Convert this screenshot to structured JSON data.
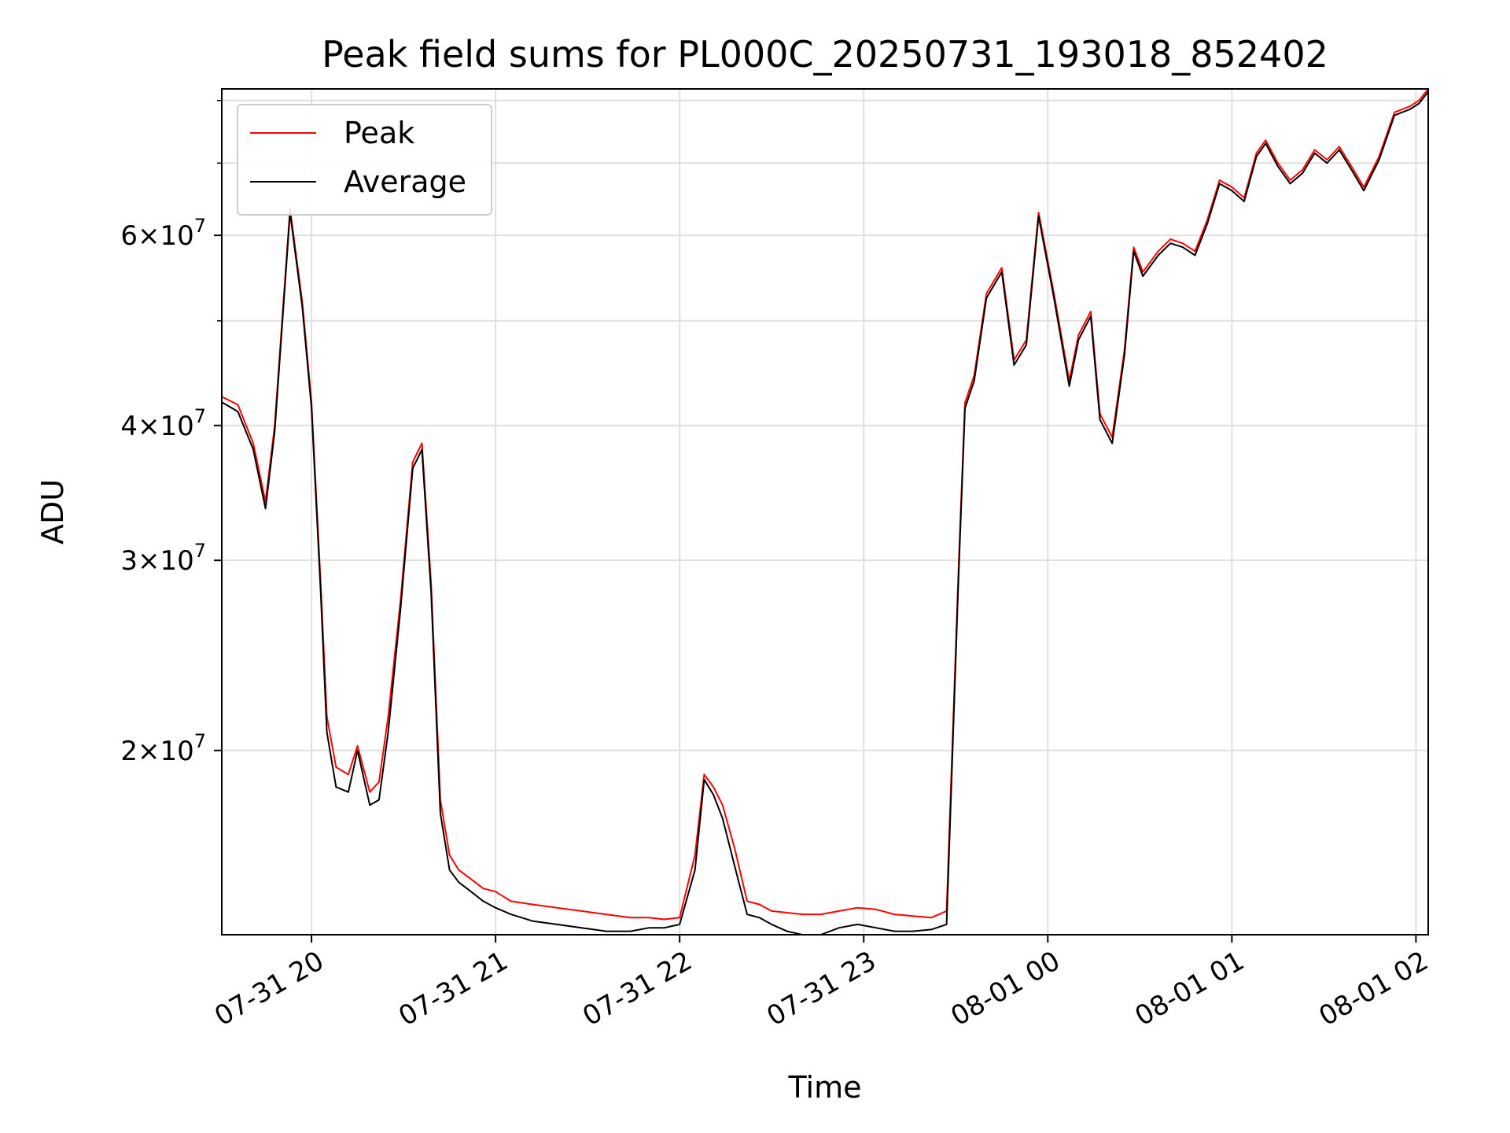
{
  "chart_data": {
    "type": "line",
    "title": "Peak field sums for PL000C_20250731_193018_852402",
    "xlabel": "Time",
    "ylabel": "ADU",
    "yscale": "log",
    "grid": true,
    "legend_position": "upper left",
    "xlim": [
      "2025-07-31 19:30:45",
      "2025-08-01 02:04:00"
    ],
    "ylim": [
      13500000,
      82000000
    ],
    "x_ticks": [
      {
        "label": "07-31 20",
        "value": "2025-07-31 20:00"
      },
      {
        "label": "07-31 21",
        "value": "2025-07-31 21:00"
      },
      {
        "label": "07-31 22",
        "value": "2025-07-31 22:00"
      },
      {
        "label": "07-31 23",
        "value": "2025-07-31 23:00"
      },
      {
        "label": "08-01 00",
        "value": "2025-08-01 00:00"
      },
      {
        "label": "08-01 01",
        "value": "2025-08-01 01:00"
      },
      {
        "label": "08-01 02",
        "value": "2025-08-01 02:00"
      }
    ],
    "y_ticks": [
      {
        "value": 20000000,
        "mantissa": "2",
        "exponent": "7"
      },
      {
        "value": 30000000,
        "mantissa": "3",
        "exponent": "7"
      },
      {
        "value": 40000000,
        "mantissa": "4",
        "exponent": "7"
      },
      {
        "value": 60000000,
        "mantissa": "6",
        "exponent": "7"
      }
    ],
    "y_minor_ticks": [
      50000000,
      70000000,
      80000000
    ],
    "series": [
      {
        "name": "Peak",
        "color": "#ff0000",
        "x": [
          "2025-07-31 19:31",
          "2025-07-31 19:36",
          "2025-07-31 19:41",
          "2025-07-31 19:45",
          "2025-07-31 19:48",
          "2025-07-31 19:53",
          "2025-07-31 19:57",
          "2025-07-31 20:00",
          "2025-07-31 20:03",
          "2025-07-31 20:05",
          "2025-07-31 20:08",
          "2025-07-31 20:12",
          "2025-07-31 20:15",
          "2025-07-31 20:19",
          "2025-07-31 20:22",
          "2025-07-31 20:25",
          "2025-07-31 20:29",
          "2025-07-31 20:33",
          "2025-07-31 20:36",
          "2025-07-31 20:39",
          "2025-07-31 20:42",
          "2025-07-31 20:45",
          "2025-07-31 20:48",
          "2025-07-31 20:52",
          "2025-07-31 20:56",
          "2025-07-31 21:00",
          "2025-07-31 21:05",
          "2025-07-31 21:12",
          "2025-07-31 21:20",
          "2025-07-31 21:28",
          "2025-07-31 21:36",
          "2025-07-31 21:44",
          "2025-07-31 21:50",
          "2025-07-31 21:55",
          "2025-07-31 22:00",
          "2025-07-31 22:05",
          "2025-07-31 22:08",
          "2025-07-31 22:11",
          "2025-07-31 22:14",
          "2025-07-31 22:18",
          "2025-07-31 22:22",
          "2025-07-31 22:26",
          "2025-07-31 22:30",
          "2025-07-31 22:35",
          "2025-07-31 22:40",
          "2025-07-31 22:46",
          "2025-07-31 22:52",
          "2025-07-31 22:58",
          "2025-07-31 23:04",
          "2025-07-31 23:10",
          "2025-07-31 23:16",
          "2025-07-31 23:22",
          "2025-07-31 23:27",
          "2025-07-31 23:31",
          "2025-07-31 23:33",
          "2025-07-31 23:36",
          "2025-07-31 23:40",
          "2025-07-31 23:45",
          "2025-07-31 23:49",
          "2025-07-31 23:53",
          "2025-07-31 23:57",
          "2025-08-01 00:02",
          "2025-08-01 00:07",
          "2025-08-01 00:10",
          "2025-08-01 00:14",
          "2025-08-01 00:17",
          "2025-08-01 00:21",
          "2025-08-01 00:25",
          "2025-08-01 00:28",
          "2025-08-01 00:31",
          "2025-08-01 00:36",
          "2025-08-01 00:40",
          "2025-08-01 00:44",
          "2025-08-01 00:48",
          "2025-08-01 00:52",
          "2025-08-01 00:56",
          "2025-08-01 01:00",
          "2025-08-01 01:04",
          "2025-08-01 01:08",
          "2025-08-01 01:11",
          "2025-08-01 01:15",
          "2025-08-01 01:19",
          "2025-08-01 01:23",
          "2025-08-01 01:27",
          "2025-08-01 01:31",
          "2025-08-01 01:35",
          "2025-08-01 01:39",
          "2025-08-01 01:43",
          "2025-08-01 01:48",
          "2025-08-01 01:53",
          "2025-08-01 01:58",
          "2025-08-01 02:01",
          "2025-08-01 02:04"
        ],
        "values": [
          42500000,
          41800000,
          38500000,
          34000000,
          40000000,
          63500000,
          52000000,
          42000000,
          28500000,
          21500000,
          19300000,
          19000000,
          20200000,
          18300000,
          18700000,
          21500000,
          27500000,
          37000000,
          38500000,
          28500000,
          18000000,
          16000000,
          15500000,
          15200000,
          14900000,
          14800000,
          14500000,
          14400000,
          14300000,
          14200000,
          14100000,
          14000000,
          14000000,
          13950000,
          14000000,
          16000000,
          19000000,
          18500000,
          17800000,
          16200000,
          14500000,
          14400000,
          14200000,
          14150000,
          14100000,
          14100000,
          14200000,
          14300000,
          14250000,
          14100000,
          14050000,
          14000000,
          14200000,
          30000000,
          42000000,
          44500000,
          53000000,
          56000000,
          46000000,
          48000000,
          63000000,
          53000000,
          44000000,
          48500000,
          51000000,
          41000000,
          39000000,
          47000000,
          58500000,
          55500000,
          58000000,
          59500000,
          59000000,
          58000000,
          62000000,
          67500000,
          66500000,
          65000000,
          71500000,
          73500000,
          70000000,
          67500000,
          69000000,
          72000000,
          70500000,
          72500000,
          69500000,
          66500000,
          71000000,
          78000000,
          79000000,
          80000000,
          82000000
        ]
      },
      {
        "name": "Average",
        "color": "#000000",
        "x": [
          "2025-07-31 19:31",
          "2025-07-31 19:36",
          "2025-07-31 19:41",
          "2025-07-31 19:45",
          "2025-07-31 19:48",
          "2025-07-31 19:53",
          "2025-07-31 19:57",
          "2025-07-31 20:00",
          "2025-07-31 20:03",
          "2025-07-31 20:05",
          "2025-07-31 20:08",
          "2025-07-31 20:12",
          "2025-07-31 20:15",
          "2025-07-31 20:19",
          "2025-07-31 20:22",
          "2025-07-31 20:25",
          "2025-07-31 20:29",
          "2025-07-31 20:33",
          "2025-07-31 20:36",
          "2025-07-31 20:39",
          "2025-07-31 20:42",
          "2025-07-31 20:45",
          "2025-07-31 20:48",
          "2025-07-31 20:52",
          "2025-07-31 20:56",
          "2025-07-31 21:00",
          "2025-07-31 21:05",
          "2025-07-31 21:12",
          "2025-07-31 21:20",
          "2025-07-31 21:28",
          "2025-07-31 21:36",
          "2025-07-31 21:44",
          "2025-07-31 21:50",
          "2025-07-31 21:55",
          "2025-07-31 22:00",
          "2025-07-31 22:05",
          "2025-07-31 22:08",
          "2025-07-31 22:11",
          "2025-07-31 22:14",
          "2025-07-31 22:18",
          "2025-07-31 22:22",
          "2025-07-31 22:26",
          "2025-07-31 22:30",
          "2025-07-31 22:35",
          "2025-07-31 22:40",
          "2025-07-31 22:46",
          "2025-07-31 22:52",
          "2025-07-31 22:58",
          "2025-07-31 23:04",
          "2025-07-31 23:10",
          "2025-07-31 23:16",
          "2025-07-31 23:22",
          "2025-07-31 23:27",
          "2025-07-31 23:31",
          "2025-07-31 23:33",
          "2025-07-31 23:36",
          "2025-07-31 23:40",
          "2025-07-31 23:45",
          "2025-07-31 23:49",
          "2025-07-31 23:53",
          "2025-07-31 23:57",
          "2025-08-01 00:02",
          "2025-08-01 00:07",
          "2025-08-01 00:10",
          "2025-08-01 00:14",
          "2025-08-01 00:17",
          "2025-08-01 00:21",
          "2025-08-01 00:25",
          "2025-08-01 00:28",
          "2025-08-01 00:31",
          "2025-08-01 00:36",
          "2025-08-01 00:40",
          "2025-08-01 00:44",
          "2025-08-01 00:48",
          "2025-08-01 00:52",
          "2025-08-01 00:56",
          "2025-08-01 01:00",
          "2025-08-01 01:04",
          "2025-08-01 01:08",
          "2025-08-01 01:11",
          "2025-08-01 01:15",
          "2025-08-01 01:19",
          "2025-08-01 01:23",
          "2025-08-01 01:27",
          "2025-08-01 01:31",
          "2025-08-01 01:35",
          "2025-08-01 01:39",
          "2025-08-01 01:43",
          "2025-08-01 01:48",
          "2025-08-01 01:53",
          "2025-08-01 01:58",
          "2025-08-01 02:01",
          "2025-08-01 02:04"
        ],
        "values": [
          42000000,
          41200000,
          38000000,
          33500000,
          39500000,
          63000000,
          51500000,
          41500000,
          28000000,
          20800000,
          18500000,
          18300000,
          20000000,
          17800000,
          18000000,
          20800000,
          27000000,
          36500000,
          38000000,
          28000000,
          17500000,
          15500000,
          15100000,
          14800000,
          14500000,
          14300000,
          14100000,
          13900000,
          13800000,
          13700000,
          13600000,
          13600000,
          13700000,
          13700000,
          13800000,
          15500000,
          18800000,
          18200000,
          17300000,
          15600000,
          14100000,
          14000000,
          13800000,
          13600000,
          13500000,
          13500000,
          13700000,
          13800000,
          13700000,
          13600000,
          13600000,
          13650000,
          13800000,
          29500000,
          41500000,
          44000000,
          52500000,
          55500000,
          45500000,
          47500000,
          62500000,
          52500000,
          43500000,
          48000000,
          50500000,
          40500000,
          38500000,
          46500000,
          58000000,
          55000000,
          57500000,
          59000000,
          58500000,
          57500000,
          61500000,
          67000000,
          66000000,
          64500000,
          71000000,
          73000000,
          69500000,
          67000000,
          68500000,
          71500000,
          70000000,
          72000000,
          69000000,
          66000000,
          70500000,
          77500000,
          78500000,
          79500000,
          81500000
        ]
      }
    ]
  }
}
